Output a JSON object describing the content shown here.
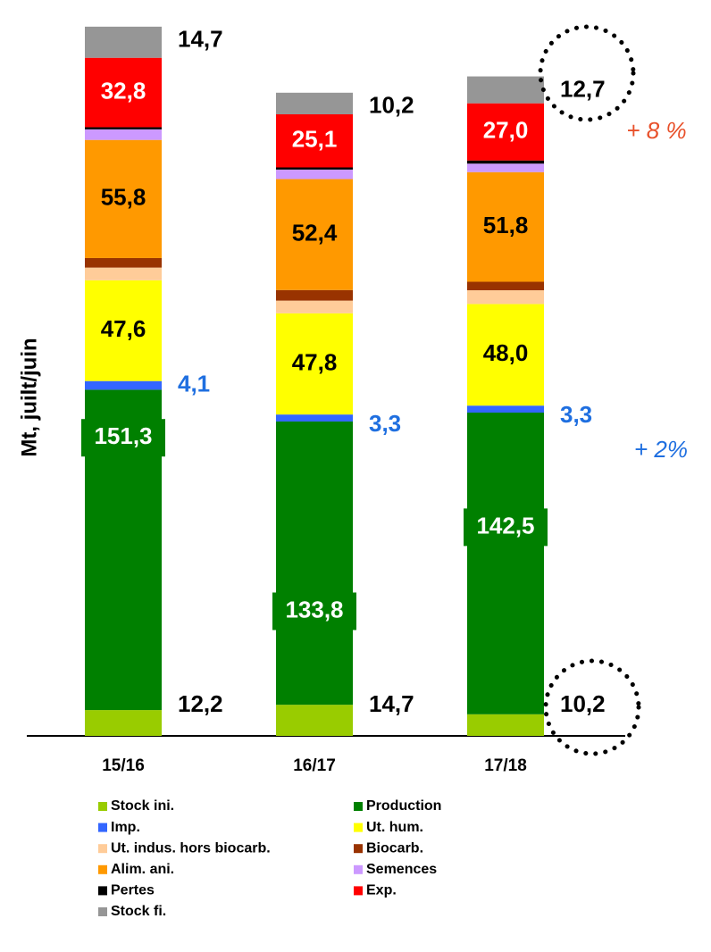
{
  "chart_data": {
    "type": "stacked_bar",
    "y_label": "Mt, juilt/juin",
    "categories": [
      "15/16",
      "16/17",
      "17/18"
    ],
    "ylim": [
      0,
      340
    ],
    "series": [
      {
        "name": "Stock ini.",
        "color": "#99cc00",
        "values": [
          12.2,
          14.7,
          10.2
        ],
        "value_labels": [
          "12,2",
          "14,7",
          "10,2"
        ]
      },
      {
        "name": "Production",
        "color": "#008000",
        "values": [
          151.3,
          133.8,
          142.5
        ],
        "value_labels": [
          "151,3",
          "133,8",
          "142,5"
        ]
      },
      {
        "name": "Imp.",
        "color": "#3366ff",
        "values": [
          4.1,
          3.3,
          3.3
        ],
        "value_labels": [
          "4,1",
          "3,3",
          "3,3"
        ]
      },
      {
        "name": "Ut. hum.",
        "color": "#ffff00",
        "values": [
          47.6,
          47.8,
          48.0
        ],
        "value_labels": [
          "47,6",
          "47,8",
          "48,0"
        ]
      },
      {
        "name": "Ut. indus. hors biocarb.",
        "color": "#ffcc99",
        "values": [
          6,
          6,
          6.5
        ]
      },
      {
        "name": "Biocarb.",
        "color": "#993300",
        "values": [
          4.5,
          5,
          4
        ]
      },
      {
        "name": "Alim. ani.",
        "color": "#ff9900",
        "values": [
          55.8,
          52.4,
          51.8
        ],
        "value_labels": [
          "55,8",
          "52,4",
          "51,8"
        ]
      },
      {
        "name": "Semences",
        "color": "#cc99ff",
        "values": [
          5,
          4.5,
          4
        ]
      },
      {
        "name": "Pertes",
        "color": "#000000",
        "values": [
          1,
          1,
          1.5
        ]
      },
      {
        "name": "Exp.",
        "color": "#ff0000",
        "values": [
          32.8,
          25.1,
          27.0
        ],
        "value_labels": [
          "32,8",
          "25,1",
          "27,0"
        ]
      },
      {
        "name": "Stock fi.",
        "color": "#969696",
        "values": [
          14.7,
          10.2,
          12.7
        ],
        "value_labels": [
          "14,7",
          "10,2",
          "12,7"
        ]
      }
    ],
    "annotations": [
      "+ 8 %",
      "+ 2%"
    ]
  }
}
